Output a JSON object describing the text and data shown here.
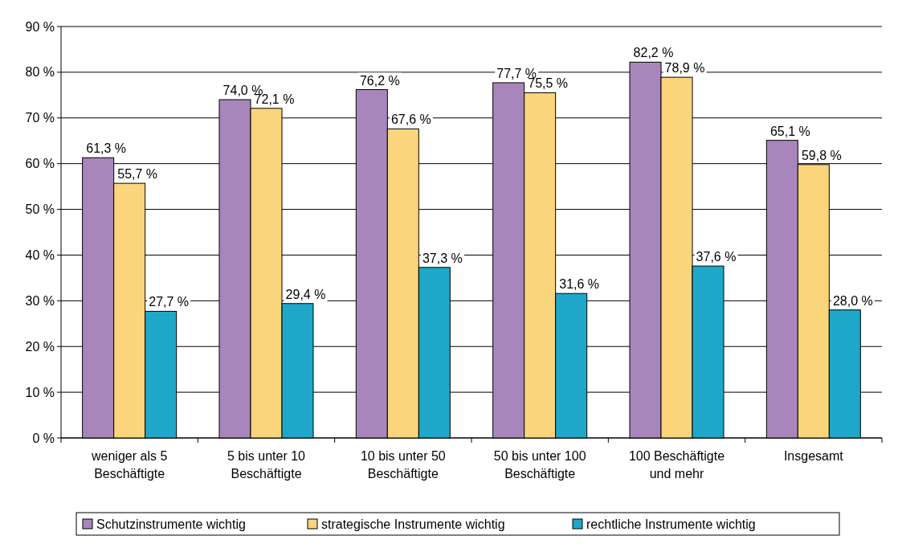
{
  "chart_data": {
    "type": "bar",
    "categories": [
      "weniger als 5 Beschäftigte",
      "5 bis unter 10 Beschäftigte",
      "10 bis unter 50 Beschäftigte",
      "50 bis unter 100 Beschäftigte",
      "100 Beschäftigte und mehr",
      "Insgesamt"
    ],
    "series": [
      {
        "name": "Schutzinstrumente wichtig",
        "color": "#a886bb",
        "values": [
          61.3,
          74.0,
          76.2,
          77.7,
          82.2,
          65.1
        ],
        "value_labels": [
          "61,3 %",
          "74,0 %",
          "76,2 %",
          "77,7 %",
          "82,2 %",
          "65,1 %"
        ]
      },
      {
        "name": "strategische Instrumente wichtig",
        "color": "#fad57c",
        "values": [
          55.7,
          72.1,
          67.6,
          75.5,
          78.9,
          59.8
        ],
        "value_labels": [
          "55,7 %",
          "72,1 %",
          "67,6 %",
          "75,5 %",
          "78,9 %",
          "59,8 %"
        ]
      },
      {
        "name": "rechtliche Instrumente wichtig",
        "color": "#1fa7c9",
        "values": [
          27.7,
          29.4,
          37.3,
          31.6,
          37.6,
          28.0
        ],
        "value_labels": [
          "27,7 %",
          "29,4 %",
          "37,3 %",
          "31,6 %",
          "37,6 %",
          "28,0 %"
        ]
      }
    ],
    "ylim": [
      0,
      90
    ],
    "yticks": [
      {
        "value": 0,
        "label": "0 %"
      },
      {
        "value": 10,
        "label": "10 %"
      },
      {
        "value": 20,
        "label": "20 %"
      },
      {
        "value": 30,
        "label": "30 %"
      },
      {
        "value": 40,
        "label": "40 %"
      },
      {
        "value": 50,
        "label": "50 %"
      },
      {
        "value": 60,
        "label": "60 %"
      },
      {
        "value": 70,
        "label": "70 %"
      },
      {
        "value": 80,
        "label": "80 %"
      },
      {
        "value": 90,
        "label": "90 %"
      }
    ],
    "grid": "y",
    "legend": "bottom"
  }
}
